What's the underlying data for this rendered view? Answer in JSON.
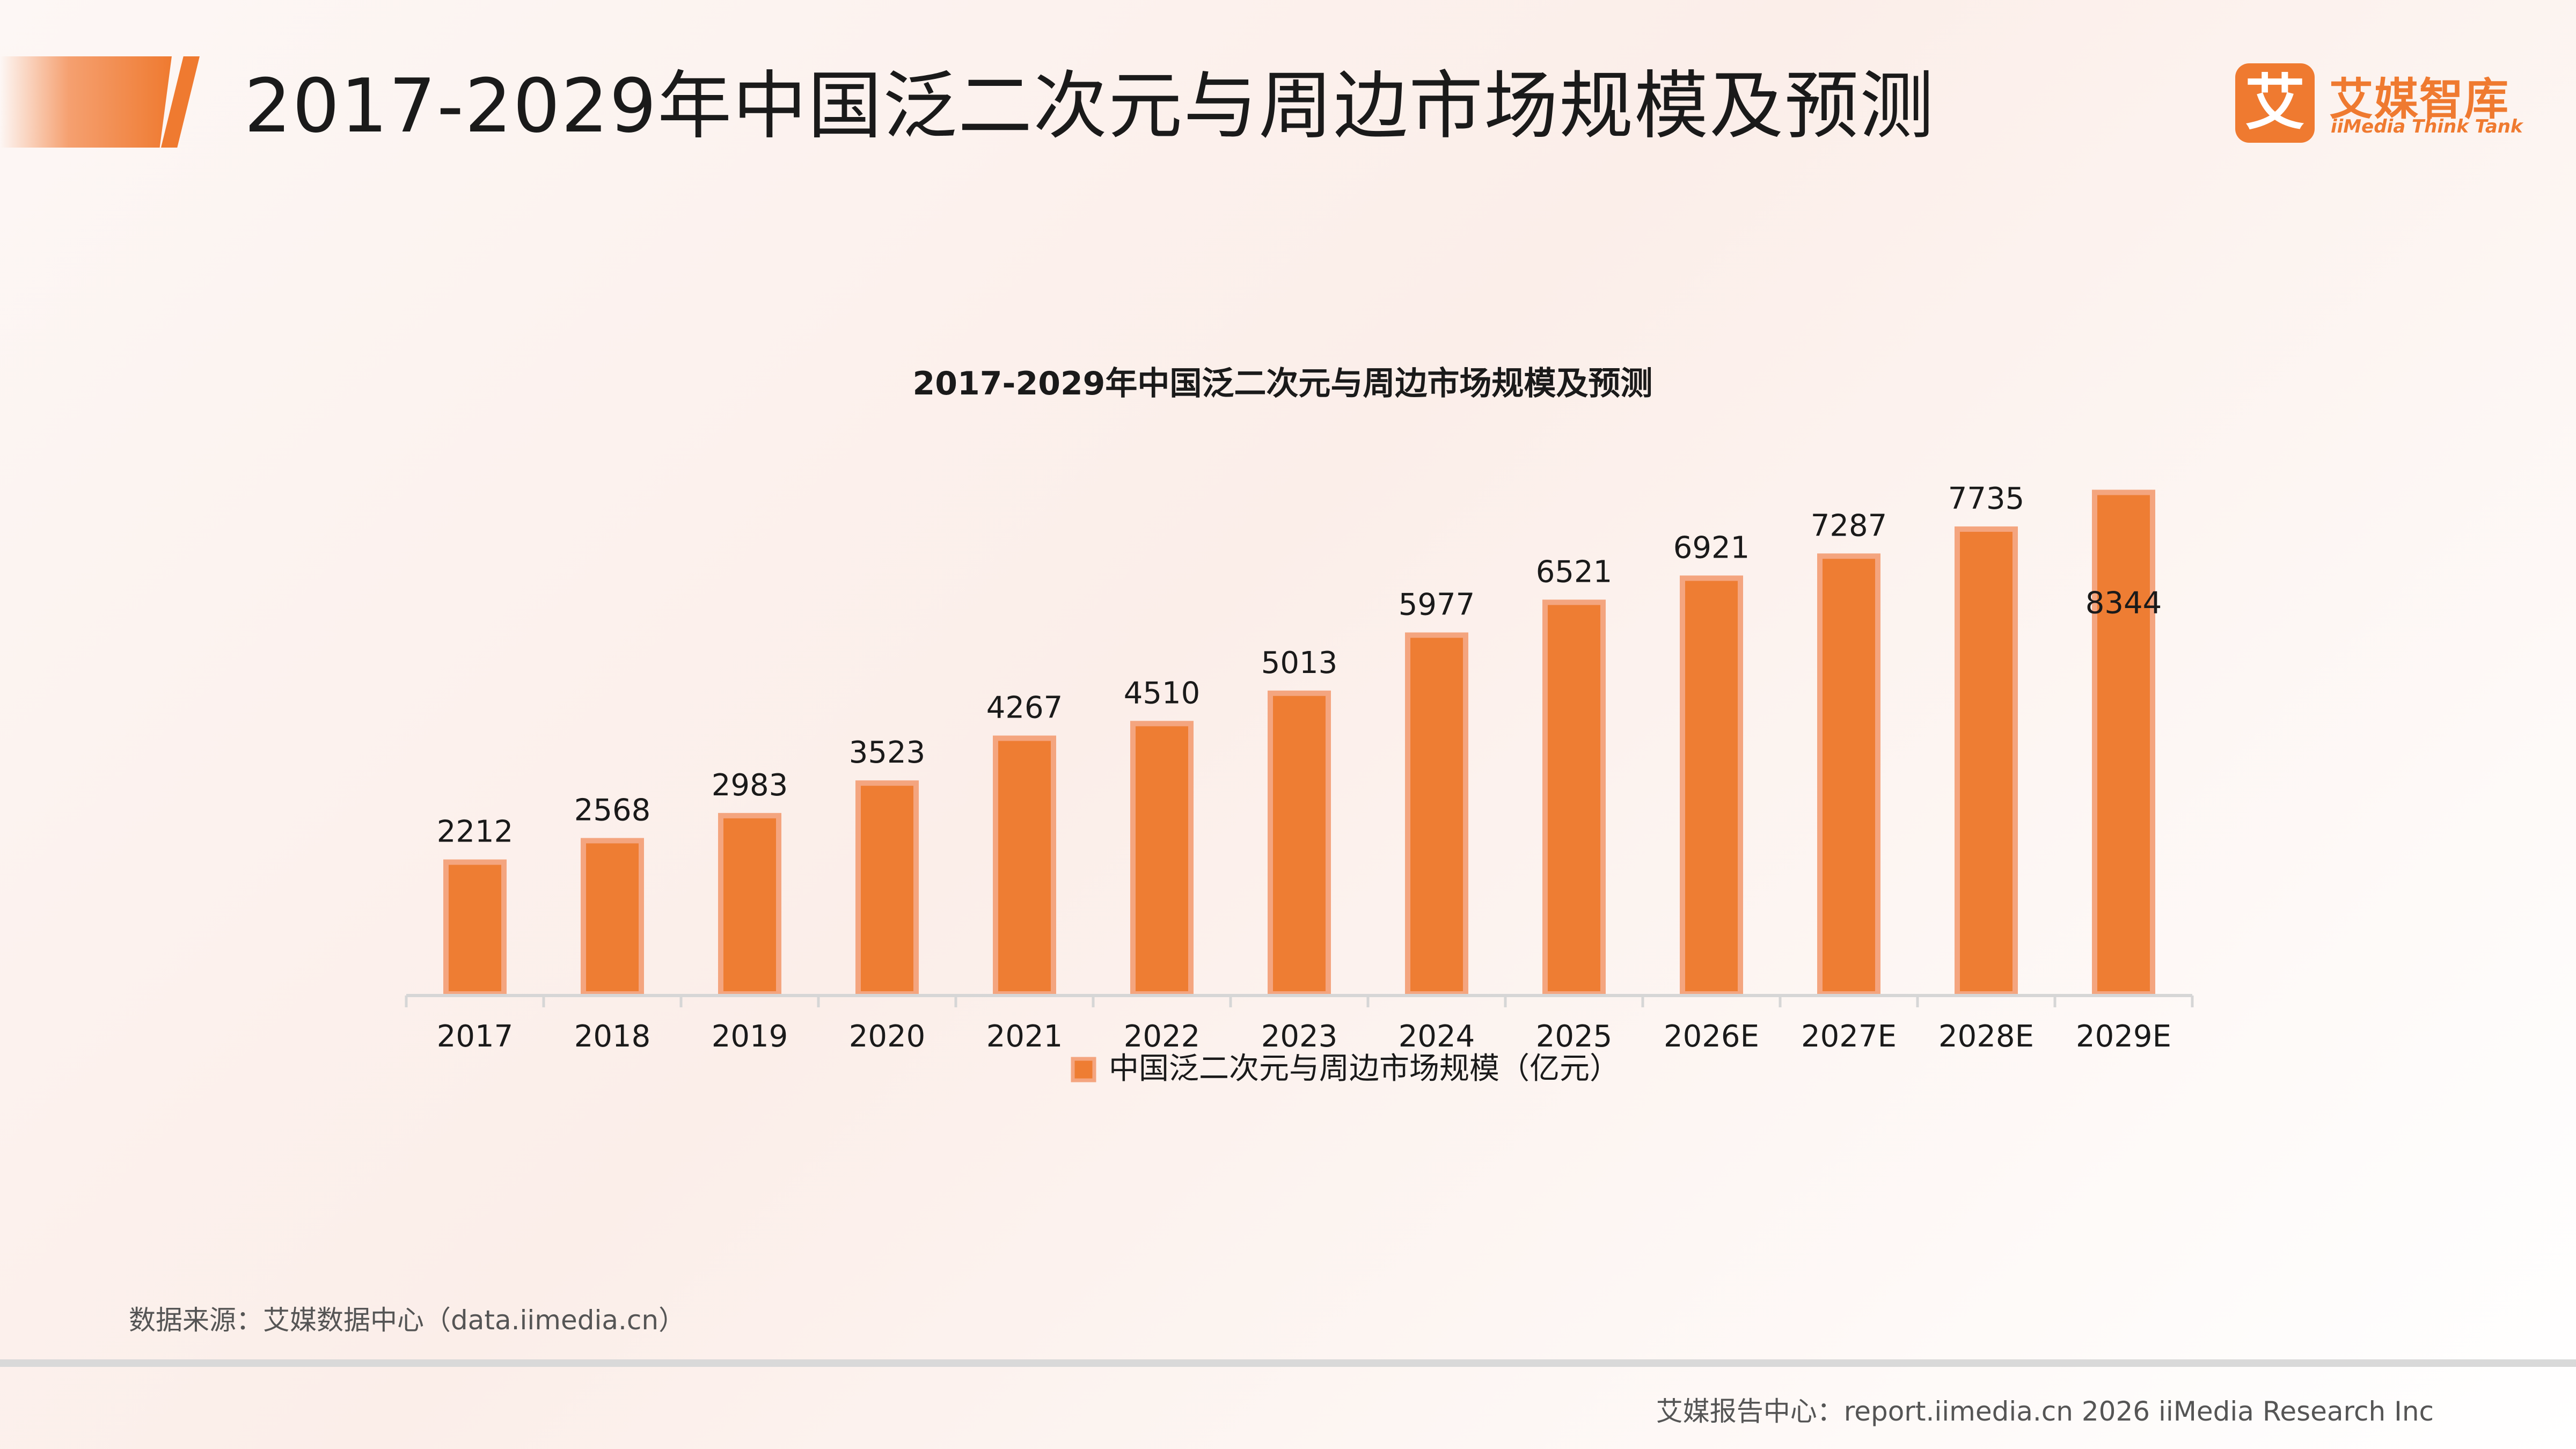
{
  "header": {
    "title": "2017-2029年中国泛二次元与周边市场规模及预测"
  },
  "logo": {
    "mark": "艾",
    "name_cn": "艾媒智库",
    "name_en": "iiMedia Think Tank"
  },
  "colors": {
    "accent": "#ef7a30",
    "bar_fill": "#ee7d33",
    "bar_border": "#f4a57f"
  },
  "chart_data": {
    "type": "bar",
    "title": "2017-2029年中国泛二次元与周边市场规模及预测",
    "categories": [
      "2017",
      "2018",
      "2019",
      "2020",
      "2021",
      "2022",
      "2023",
      "2024",
      "2025",
      "2026E",
      "2027E",
      "2028E",
      "2029E"
    ],
    "series": [
      {
        "name": "中国泛二次元与周边市场规模（亿元）",
        "values": [
          2212,
          2568,
          2983,
          3523,
          4267,
          4510,
          5013,
          5977,
          6521,
          6921,
          7287,
          7735,
          8344
        ]
      }
    ],
    "xlabel": "",
    "ylabel": "",
    "ylim": [
      0,
      8500
    ],
    "grid": false,
    "legend": "bottom"
  },
  "footer": {
    "source": "数据来源：艾媒数据中心（data.iimedia.cn）",
    "credit": "艾媒报告中心：report.iimedia.cn   2026 iiMedia Research Inc"
  }
}
